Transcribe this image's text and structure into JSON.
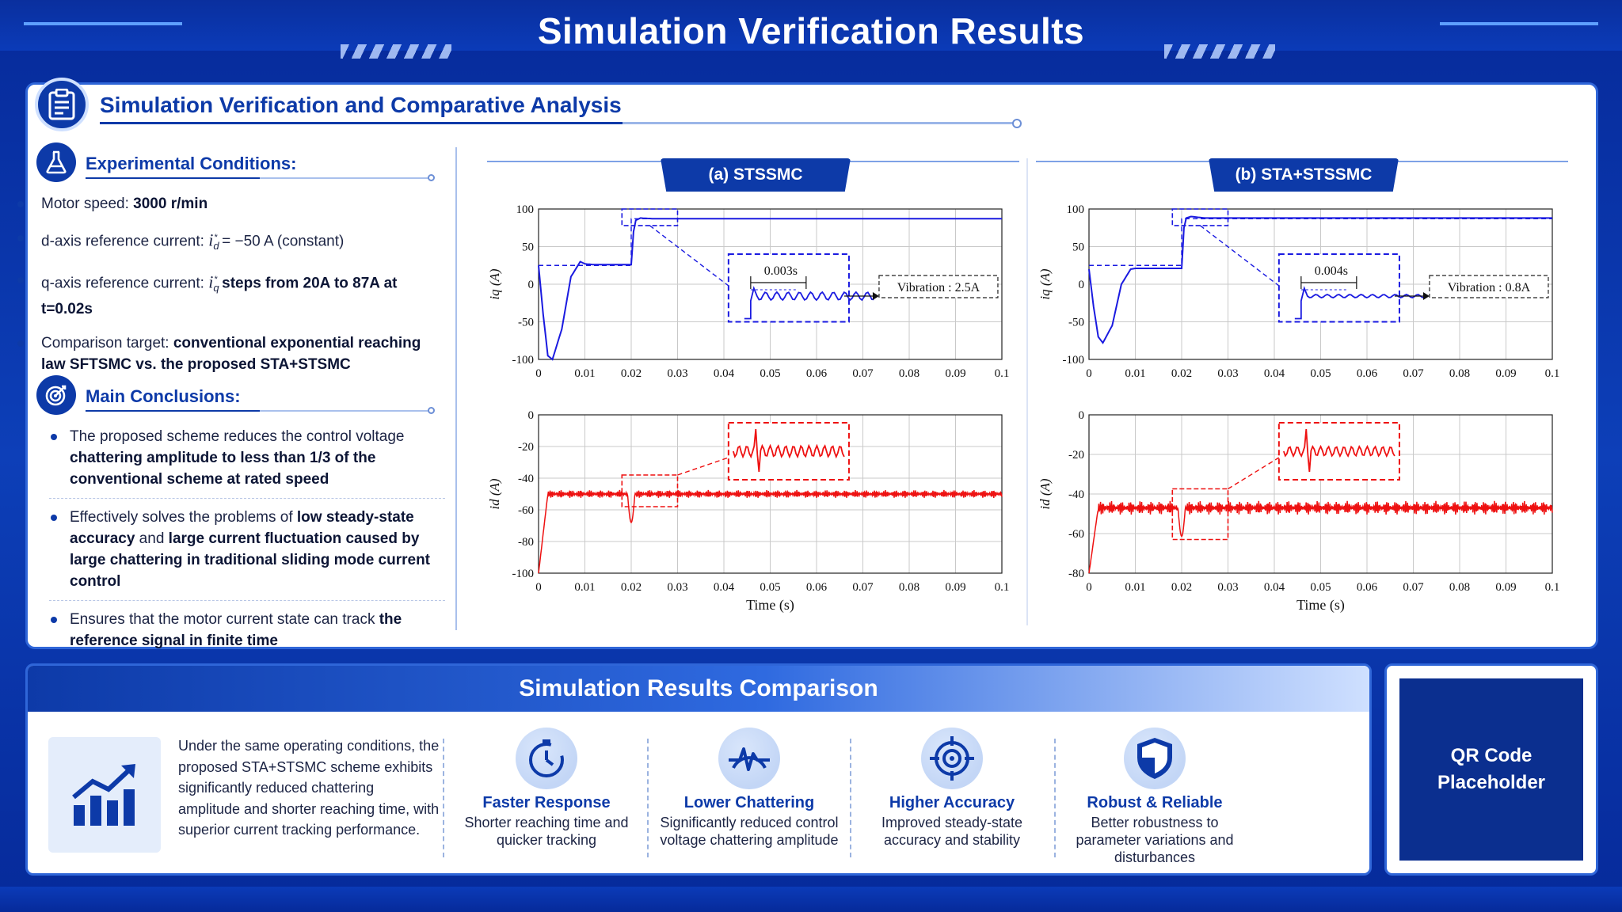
{
  "header": {
    "title": "Simulation Verification Results"
  },
  "main": {
    "title": "Simulation Verification and Comparative Analysis"
  },
  "conditions": {
    "title": "Experimental Conditions:",
    "items": [
      {
        "pre": "Motor speed: ",
        "bold": "3000 r/min",
        "post": ""
      },
      {
        "pre": "d-axis reference current: ",
        "math": "i",
        "sub": "d",
        "sup": "*",
        "post": " = −50 A (constant)"
      },
      {
        "pre": "q-axis reference current: ",
        "math": "i",
        "sub": "q",
        "sup": "*",
        "post": " steps from 20A to 87A at t=0.02s"
      },
      {
        "pre": "Comparison target: ",
        "bold": "conventional exponential reaching law SFTSMC vs. the proposed STA+STSMC",
        "post": ""
      }
    ]
  },
  "conclusions": {
    "title": "Main Conclusions:",
    "items": [
      {
        "text1": "The proposed scheme reduces the control voltage ",
        "bold": "chattering amplitude to less than 1/3 of the conventional scheme at rated speed",
        "text2": ""
      },
      {
        "text1": "Effectively solves the problems of ",
        "bold": "low steady-state accuracy",
        "text2": " and ",
        "bold2": "large current fluctuation caused by large chattering in traditional sliding mode current control"
      },
      {
        "text1": "Ensures that the motor current state can track ",
        "bold": "the reference signal in finite time",
        "text2": ""
      }
    ]
  },
  "chart_data": [
    {
      "type": "line",
      "panel": "(a)  STSSMC",
      "ylabel": "i_q (A)",
      "xlim": [
        0,
        0.1
      ],
      "ylim": [
        -100,
        100
      ],
      "xticks": [
        "0",
        "0.01",
        "0.02",
        "0.03",
        "0.04",
        "0.05",
        "0.06",
        "0.07",
        "0.08",
        "0.09",
        "0.1"
      ],
      "yticks": [
        "100",
        "50",
        "0",
        "-50",
        "-100"
      ],
      "series": [
        {
          "color": "#1a1ae0",
          "x": [
            0,
            0.001,
            0.002,
            0.003,
            0.005,
            0.007,
            0.009,
            0.01,
            0.012,
            0.02,
            0.0205,
            0.021,
            0.022,
            0.025,
            0.1
          ],
          "y": [
            25,
            -40,
            -95,
            -100,
            -60,
            10,
            30,
            27,
            26,
            26,
            70,
            85,
            88,
            87,
            87
          ]
        }
      ],
      "annotation": {
        "delay": "0.003s",
        "vibration": "Vibration : 2.5A"
      }
    },
    {
      "type": "line",
      "panel": "(b)  STA+STSSMC",
      "ylabel": "i_q (A)",
      "xlim": [
        0,
        0.1
      ],
      "ylim": [
        -100,
        100
      ],
      "xticks": [
        "0",
        "0.01",
        "0.02",
        "0.03",
        "0.04",
        "0.05",
        "0.06",
        "0.07",
        "0.08",
        "0.09",
        "0.1"
      ],
      "yticks": [
        "100",
        "50",
        "0",
        "-50",
        "-100"
      ],
      "series": [
        {
          "color": "#1a1ae0",
          "x": [
            0,
            0.001,
            0.002,
            0.003,
            0.005,
            0.007,
            0.009,
            0.01,
            0.012,
            0.02,
            0.0205,
            0.021,
            0.022,
            0.025,
            0.1
          ],
          "y": [
            20,
            -30,
            -70,
            -78,
            -55,
            0,
            20,
            21,
            21,
            21,
            75,
            88,
            90,
            88,
            88
          ]
        }
      ],
      "annotation": {
        "delay": "0.004s",
        "vibration": "Vibration : 0.8A"
      }
    },
    {
      "type": "line",
      "panel": "(a)  STSSMC",
      "xlabel": "Time (s)",
      "ylabel": "i_d (A)",
      "xlim": [
        0,
        0.1
      ],
      "ylim": [
        -100,
        0
      ],
      "xticks": [
        "0",
        "0.01",
        "0.02",
        "0.03",
        "0.04",
        "0.05",
        "0.06",
        "0.07",
        "0.08",
        "0.09",
        "0.1"
      ],
      "yticks": [
        "0",
        "-20",
        "-40",
        "-60",
        "-80",
        "-100"
      ],
      "series": [
        {
          "color": "#ee1111",
          "mean": -50,
          "ripple": 2.5,
          "spike_at": 0.02
        }
      ]
    },
    {
      "type": "line",
      "panel": "(b)  STA+STSSMC",
      "xlabel": "Time (s)",
      "ylabel": "i_d (A)",
      "xlim": [
        0,
        0.1
      ],
      "ylim": [
        -80,
        0
      ],
      "xticks": [
        "0",
        "0.01",
        "0.02",
        "0.03",
        "0.04",
        "0.05",
        "0.06",
        "0.07",
        "0.08",
        "0.09",
        "0.1"
      ],
      "yticks": [
        "0",
        "-20",
        "-40",
        "-60",
        "-80"
      ],
      "series": [
        {
          "color": "#ee1111",
          "mean": -47,
          "ripple": 3.5,
          "spike_at": 0.02
        }
      ]
    }
  ],
  "comparison": {
    "title": "Simulation Results Comparison",
    "summary": "Under the same operating conditions, the proposed STA+STSMC scheme exhibits significantly reduced chattering amplitude and shorter reaching time, with superior current tracking performance.",
    "features": [
      {
        "icon": "stopwatch-icon",
        "title": "Faster Response",
        "desc": "Shorter reaching time and quicker tracking"
      },
      {
        "icon": "pulse-wave-icon",
        "title": "Lower Chattering",
        "desc": "Significantly reduced control voltage chattering amplitude"
      },
      {
        "icon": "target-icon",
        "title": "Higher Accuracy",
        "desc": "Improved steady-state accuracy and stability"
      },
      {
        "icon": "shield-icon",
        "title": "Robust & Reliable",
        "desc": "Better robustness to parameter variations and disturbances"
      }
    ]
  },
  "qr": {
    "label": "QR Code Placeholder"
  },
  "colors": {
    "accent": "#0d3aa8",
    "blue_trace": "#1a1ae0",
    "red_trace": "#ee1111"
  }
}
